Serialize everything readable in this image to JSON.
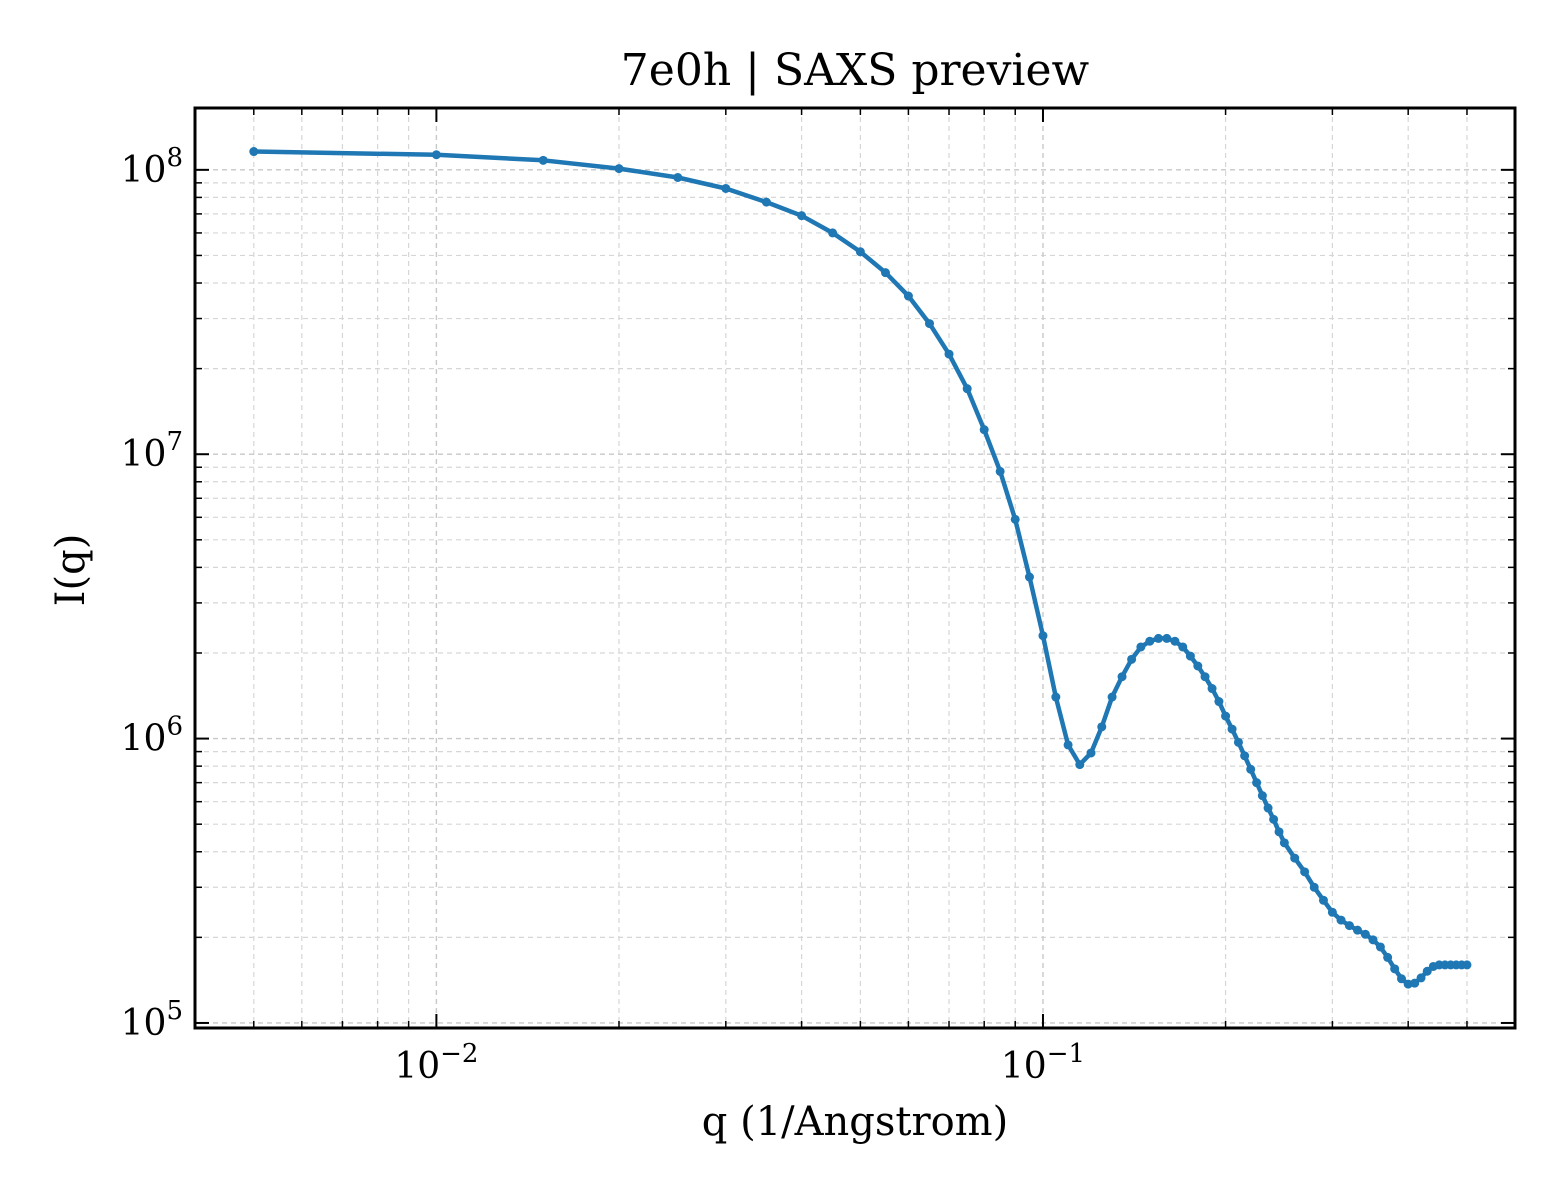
{
  "chart_data": {
    "type": "line",
    "title": "7e0h | SAXS preview",
    "xlabel": "q (1/Angstrom)",
    "ylabel": "I(q)",
    "xscale": "log",
    "yscale": "log",
    "xlim": [
      0.004,
      0.6
    ],
    "ylim": [
      96000,
      165000000
    ],
    "grid": true,
    "x_ticks": [
      {
        "value": 0.01,
        "base": "10",
        "exp": "−2"
      },
      {
        "value": 0.1,
        "base": "10",
        "exp": "−1"
      }
    ],
    "y_ticks": [
      {
        "value": 100000,
        "base": "10",
        "exp": "5"
      },
      {
        "value": 1000000,
        "base": "10",
        "exp": "6"
      },
      {
        "value": 10000000,
        "base": "10",
        "exp": "7"
      },
      {
        "value": 100000000,
        "base": "10",
        "exp": "8"
      }
    ],
    "series": [
      {
        "color": "#1f77b4",
        "markers": true,
        "x": [
          0.005,
          0.01,
          0.015,
          0.02,
          0.025,
          0.03,
          0.035,
          0.04,
          0.045,
          0.05,
          0.055,
          0.06,
          0.065,
          0.07,
          0.075,
          0.08,
          0.085,
          0.09,
          0.095,
          0.1,
          0.105,
          0.11,
          0.115,
          0.12,
          0.125,
          0.13,
          0.135,
          0.14,
          0.145,
          0.15,
          0.155,
          0.16,
          0.165,
          0.17,
          0.175,
          0.18,
          0.185,
          0.19,
          0.195,
          0.2,
          0.205,
          0.21,
          0.215,
          0.22,
          0.225,
          0.23,
          0.235,
          0.24,
          0.245,
          0.25,
          0.26,
          0.27,
          0.28,
          0.29,
          0.3,
          0.31,
          0.32,
          0.33,
          0.34,
          0.35,
          0.36,
          0.37,
          0.38,
          0.39,
          0.4,
          0.41,
          0.42,
          0.43,
          0.44,
          0.45,
          0.46,
          0.47,
          0.48,
          0.49,
          0.5
        ],
        "y": [
          116000000,
          113000000,
          108000000,
          101000000,
          94000000,
          86000000,
          77000000,
          69000000,
          60000000,
          51500000,
          43500000,
          36000000,
          28800000,
          22500000,
          17000000,
          12200000,
          8700000,
          5900000,
          3700000,
          2300000,
          1400000,
          950000,
          810000,
          890000,
          1100000,
          1400000,
          1650000,
          1900000,
          2100000,
          2200000,
          2250000,
          2250000,
          2200000,
          2100000,
          1950000,
          1800000,
          1650000,
          1500000,
          1350000,
          1200000,
          1080000,
          970000,
          870000,
          780000,
          700000,
          630000,
          570000,
          520000,
          470000,
          430000,
          380000,
          340000,
          300000,
          270000,
          245000,
          230000,
          220000,
          212000,
          205000,
          196000,
          185000,
          170000,
          155000,
          143000,
          137000,
          138000,
          144000,
          152000,
          158000,
          160000,
          160000,
          160000,
          160000,
          160000,
          160000
        ]
      }
    ]
  }
}
